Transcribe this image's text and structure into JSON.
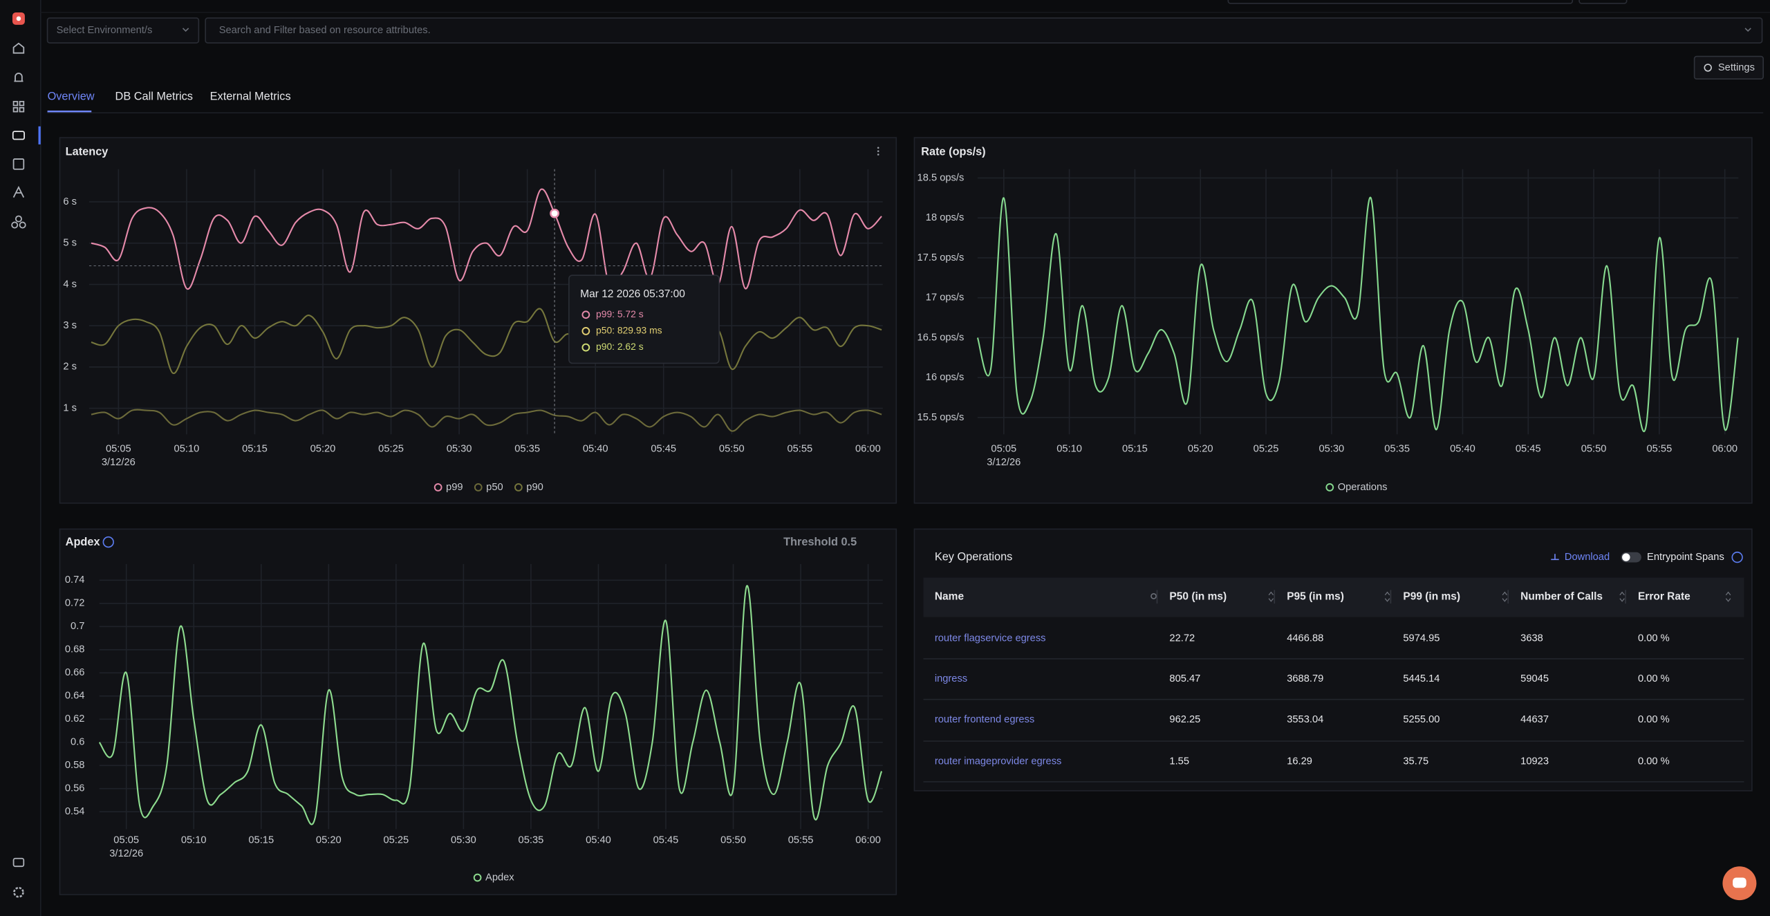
{
  "filters": {
    "environment": "Select Environment/s",
    "search": "Search and Filter based on resource attributes."
  },
  "settings": "Settings",
  "tabs": [
    "Overview",
    "DB Call Metrics",
    "External Metrics"
  ],
  "chart_data": [
    {
      "type": "line",
      "title": "Latency",
      "x": [
        "2026-03-12T05:03",
        "2026-03-12T05:04",
        "2026-03-12T05:05",
        "2026-03-12T05:06",
        "2026-03-12T05:07",
        "2026-03-12T05:08",
        "2026-03-12T05:09",
        "2026-03-12T05:10",
        "2026-03-12T05:11",
        "2026-03-12T05:12",
        "2026-03-12T05:13",
        "2026-03-12T05:14",
        "2026-03-12T05:15",
        "2026-03-12T05:16",
        "2026-03-12T05:17",
        "2026-03-12T05:18",
        "2026-03-12T05:19",
        "2026-03-12T05:20",
        "2026-03-12T05:21",
        "2026-03-12T05:22",
        "2026-03-12T05:23",
        "2026-03-12T05:24",
        "2026-03-12T05:25",
        "2026-03-12T05:26",
        "2026-03-12T05:27",
        "2026-03-12T05:28",
        "2026-03-12T05:29",
        "2026-03-12T05:30",
        "2026-03-12T05:31",
        "2026-03-12T05:32",
        "2026-03-12T05:33",
        "2026-03-12T05:34",
        "2026-03-12T05:35",
        "2026-03-12T05:36",
        "2026-03-12T05:37",
        "2026-03-12T05:38",
        "2026-03-12T05:39",
        "2026-03-12T05:40",
        "2026-03-12T05:41",
        "2026-03-12T05:42",
        "2026-03-12T05:43",
        "2026-03-12T05:44",
        "2026-03-12T05:45",
        "2026-03-12T05:46",
        "2026-03-12T05:47",
        "2026-03-12T05:48",
        "2026-03-12T05:49",
        "2026-03-12T05:50",
        "2026-03-12T05:51",
        "2026-03-12T05:52",
        "2026-03-12T05:53",
        "2026-03-12T05:54",
        "2026-03-12T05:55",
        "2026-03-12T05:56",
        "2026-03-12T05:57",
        "2026-03-12T05:58",
        "2026-03-12T05:59",
        "2026-03-12T06:00",
        "2026-03-12T06:01"
      ],
      "series": [
        {
          "name": "p99",
          "color": "#e58aaa",
          "values": [
            5.0,
            4.9,
            4.6,
            5.6,
            5.85,
            5.75,
            5.2,
            3.9,
            4.6,
            5.6,
            5.55,
            5.0,
            5.65,
            5.3,
            4.95,
            5.5,
            5.75,
            5.8,
            5.45,
            4.3,
            5.75,
            5.45,
            5.45,
            5.5,
            5.35,
            5.6,
            5.4,
            4.1,
            4.8,
            5.0,
            4.7,
            5.4,
            5.3,
            6.3,
            5.72,
            4.9,
            4.6,
            5.7,
            4.0,
            4.3,
            5.0,
            4.15,
            5.6,
            5.2,
            4.8,
            5.0,
            4.0,
            5.4,
            3.9,
            5.05,
            5.15,
            5.35,
            5.8,
            5.55,
            5.7,
            4.7,
            5.7,
            5.35,
            5.65
          ]
        },
        {
          "name": "p50",
          "color": "#6c6a3a",
          "values": [
            0.85,
            0.9,
            0.75,
            0.95,
            0.95,
            0.9,
            0.6,
            0.75,
            0.9,
            0.9,
            0.7,
            0.85,
            0.95,
            0.9,
            0.85,
            0.7,
            0.85,
            0.95,
            0.75,
            0.9,
            0.85,
            0.9,
            0.8,
            0.95,
            0.85,
            0.55,
            0.8,
            0.75,
            0.85,
            0.6,
            0.65,
            0.85,
            0.9,
            0.95,
            0.82993,
            0.8,
            0.7,
            0.9,
            0.6,
            0.85,
            0.75,
            0.55,
            0.8,
            0.9,
            0.8,
            0.55,
            0.85,
            0.45,
            0.7,
            0.85,
            0.8,
            0.9,
            0.95,
            0.85,
            0.9,
            0.65,
            0.9,
            0.95,
            0.85
          ]
        },
        {
          "name": "p90",
          "color": "#75763c",
          "values": [
            2.6,
            2.55,
            3.0,
            3.15,
            3.1,
            2.85,
            1.85,
            2.5,
            2.95,
            3.0,
            2.55,
            3.0,
            2.7,
            2.95,
            3.1,
            3.0,
            3.25,
            2.85,
            2.2,
            2.9,
            3.0,
            2.95,
            3.0,
            3.2,
            2.9,
            2.0,
            2.75,
            2.9,
            2.6,
            2.3,
            2.35,
            3.05,
            3.1,
            3.4,
            2.62,
            2.8,
            2.5,
            2.9,
            2.3,
            3.1,
            2.6,
            2.2,
            2.8,
            3.0,
            2.7,
            2.4,
            2.9,
            1.95,
            2.5,
            2.85,
            2.7,
            2.95,
            3.2,
            2.9,
            2.95,
            2.5,
            2.95,
            3.0,
            2.9
          ]
        }
      ],
      "xlim": [
        "2026-03-12T05:02:51",
        "2026-03-12T06:01:05"
      ],
      "xticks": [
        {
          "value": "2026-03-12T05:05",
          "label": "05:05",
          "date": "3/12/26"
        },
        {
          "value": "2026-03-12T05:10",
          "label": "05:10"
        },
        {
          "value": "2026-03-12T05:15",
          "label": "05:15"
        },
        {
          "value": "2026-03-12T05:20",
          "label": "05:20"
        },
        {
          "value": "2026-03-12T05:25",
          "label": "05:25"
        },
        {
          "value": "2026-03-12T05:30",
          "label": "05:30"
        },
        {
          "value": "2026-03-12T05:35",
          "label": "05:35"
        },
        {
          "value": "2026-03-12T05:40",
          "label": "05:40"
        },
        {
          "value": "2026-03-12T05:45",
          "label": "05:45"
        },
        {
          "value": "2026-03-12T05:50",
          "label": "05:50"
        },
        {
          "value": "2026-03-12T05:55",
          "label": "05:55"
        },
        {
          "value": "2026-03-12T06:00",
          "label": "06:00"
        }
      ],
      "ylim": [
        0.37,
        6.79
      ],
      "yticks": [
        {
          "value": 1,
          "label": "1 s"
        },
        {
          "value": 2,
          "label": "2 s"
        },
        {
          "value": 3,
          "label": "3 s"
        },
        {
          "value": 4,
          "label": "4 s"
        },
        {
          "value": 5,
          "label": "5 s"
        },
        {
          "value": 6,
          "label": "6 s"
        }
      ],
      "grid": true,
      "hover": {
        "x": "2026-03-12T05:37",
        "y": 4.45
      },
      "tooltip": {
        "title": "Mar 12 2026 05:37:00",
        "items": [
          "p99: 5.72 s",
          "p50: 829.93 ms",
          "p90: 2.62 s"
        ],
        "colors": [
          "#e58aaa",
          "#e2cf72",
          "#cfdc74"
        ]
      }
    },
    {
      "type": "line",
      "title": "Rate (ops/s)",
      "x": [
        "2026-03-12T05:03",
        "2026-03-12T05:04",
        "2026-03-12T05:05",
        "2026-03-12T05:06",
        "2026-03-12T05:07",
        "2026-03-12T05:08",
        "2026-03-12T05:09",
        "2026-03-12T05:10",
        "2026-03-12T05:11",
        "2026-03-12T05:12",
        "2026-03-12T05:13",
        "2026-03-12T05:14",
        "2026-03-12T05:15",
        "2026-03-12T05:16",
        "2026-03-12T05:17",
        "2026-03-12T05:18",
        "2026-03-12T05:19",
        "2026-03-12T05:20",
        "2026-03-12T05:21",
        "2026-03-12T05:22",
        "2026-03-12T05:23",
        "2026-03-12T05:24",
        "2026-03-12T05:25",
        "2026-03-12T05:26",
        "2026-03-12T05:27",
        "2026-03-12T05:28",
        "2026-03-12T05:29",
        "2026-03-12T05:30",
        "2026-03-12T05:31",
        "2026-03-12T05:32",
        "2026-03-12T05:33",
        "2026-03-12T05:34",
        "2026-03-12T05:35",
        "2026-03-12T05:36",
        "2026-03-12T05:37",
        "2026-03-12T05:38",
        "2026-03-12T05:39",
        "2026-03-12T05:40",
        "2026-03-12T05:41",
        "2026-03-12T05:42",
        "2026-03-12T05:43",
        "2026-03-12T05:44",
        "2026-03-12T05:45",
        "2026-03-12T05:46",
        "2026-03-12T05:47",
        "2026-03-12T05:48",
        "2026-03-12T05:49",
        "2026-03-12T05:50",
        "2026-03-12T05:51",
        "2026-03-12T05:52",
        "2026-03-12T05:53",
        "2026-03-12T05:54",
        "2026-03-12T05:55",
        "2026-03-12T05:56",
        "2026-03-12T05:57",
        "2026-03-12T05:58",
        "2026-03-12T05:59",
        "2026-03-12T06:00",
        "2026-03-12T06:01"
      ],
      "series": [
        {
          "name": "Operations",
          "color": "#86d98f",
          "values": [
            16.5,
            16.1,
            18.25,
            15.8,
            15.7,
            16.5,
            17.8,
            16.1,
            16.9,
            15.9,
            16.0,
            16.9,
            16.1,
            16.3,
            16.6,
            16.3,
            15.7,
            17.4,
            16.6,
            16.2,
            16.6,
            16.95,
            15.8,
            15.95,
            17.15,
            16.7,
            17.0,
            17.15,
            17.0,
            16.8,
            18.25,
            16.1,
            16.05,
            15.5,
            16.4,
            15.35,
            16.6,
            16.95,
            16.2,
            16.5,
            15.9,
            17.1,
            16.6,
            15.75,
            16.5,
            15.9,
            16.5,
            16.0,
            17.4,
            15.8,
            15.9,
            15.4,
            17.75,
            16.0,
            16.6,
            16.7,
            17.2,
            15.35,
            16.5
          ]
        }
      ],
      "xlim": [
        "2026-03-12T05:03:00",
        "2026-03-12T06:01:02"
      ],
      "xticks": [
        {
          "value": "2026-03-12T05:05",
          "label": "05:05",
          "date": "3/12/26"
        },
        {
          "value": "2026-03-12T05:10",
          "label": "05:10"
        },
        {
          "value": "2026-03-12T05:15",
          "label": "05:15"
        },
        {
          "value": "2026-03-12T05:20",
          "label": "05:20"
        },
        {
          "value": "2026-03-12T05:25",
          "label": "05:25"
        },
        {
          "value": "2026-03-12T05:30",
          "label": "05:30"
        },
        {
          "value": "2026-03-12T05:35",
          "label": "05:35"
        },
        {
          "value": "2026-03-12T05:40",
          "label": "05:40"
        },
        {
          "value": "2026-03-12T05:45",
          "label": "05:45"
        },
        {
          "value": "2026-03-12T05:50",
          "label": "05:50"
        },
        {
          "value": "2026-03-12T05:55",
          "label": "05:55"
        },
        {
          "value": "2026-03-12T06:00",
          "label": "06:00"
        }
      ],
      "ylim": [
        15.29,
        18.61
      ],
      "yticks": [
        {
          "value": 15.5,
          "label": "15.5 ops/s"
        },
        {
          "value": 16,
          "label": "16 ops/s"
        },
        {
          "value": 16.5,
          "label": "16.5 ops/s"
        },
        {
          "value": 17,
          "label": "17 ops/s"
        },
        {
          "value": 17.5,
          "label": "17.5 ops/s"
        },
        {
          "value": 18,
          "label": "18 ops/s"
        },
        {
          "value": 18.5,
          "label": "18.5 ops/s"
        }
      ],
      "grid": true
    },
    {
      "type": "line",
      "title": "Apdex",
      "threshold_label": "Threshold 0.5",
      "x": [
        "2026-03-12T05:03",
        "2026-03-12T05:04",
        "2026-03-12T05:05",
        "2026-03-12T05:06",
        "2026-03-12T05:07",
        "2026-03-12T05:08",
        "2026-03-12T05:09",
        "2026-03-12T05:10",
        "2026-03-12T05:11",
        "2026-03-12T05:12",
        "2026-03-12T05:13",
        "2026-03-12T05:14",
        "2026-03-12T05:15",
        "2026-03-12T05:16",
        "2026-03-12T05:17",
        "2026-03-12T05:18",
        "2026-03-12T05:19",
        "2026-03-12T05:20",
        "2026-03-12T05:21",
        "2026-03-12T05:22",
        "2026-03-12T05:23",
        "2026-03-12T05:24",
        "2026-03-12T05:25",
        "2026-03-12T05:26",
        "2026-03-12T05:27",
        "2026-03-12T05:28",
        "2026-03-12T05:29",
        "2026-03-12T05:30",
        "2026-03-12T05:31",
        "2026-03-12T05:32",
        "2026-03-12T05:33",
        "2026-03-12T05:34",
        "2026-03-12T05:35",
        "2026-03-12T05:36",
        "2026-03-12T05:37",
        "2026-03-12T05:38",
        "2026-03-12T05:39",
        "2026-03-12T05:40",
        "2026-03-12T05:41",
        "2026-03-12T05:42",
        "2026-03-12T05:43",
        "2026-03-12T05:44",
        "2026-03-12T05:45",
        "2026-03-12T05:46",
        "2026-03-12T05:47",
        "2026-03-12T05:48",
        "2026-03-12T05:49",
        "2026-03-12T05:50",
        "2026-03-12T05:51",
        "2026-03-12T05:52",
        "2026-03-12T05:53",
        "2026-03-12T05:54",
        "2026-03-12T05:55",
        "2026-03-12T05:56",
        "2026-03-12T05:57",
        "2026-03-12T05:58",
        "2026-03-12T05:59",
        "2026-03-12T06:00",
        "2026-03-12T06:01"
      ],
      "series": [
        {
          "name": "Apdex",
          "color": "#8edc8f",
          "values": [
            0.6,
            0.59,
            0.66,
            0.545,
            0.545,
            0.58,
            0.7,
            0.62,
            0.55,
            0.555,
            0.565,
            0.575,
            0.615,
            0.565,
            0.555,
            0.545,
            0.535,
            0.645,
            0.57,
            0.555,
            0.555,
            0.555,
            0.55,
            0.56,
            0.685,
            0.61,
            0.625,
            0.61,
            0.645,
            0.645,
            0.67,
            0.6,
            0.55,
            0.545,
            0.59,
            0.58,
            0.63,
            0.575,
            0.64,
            0.625,
            0.56,
            0.6,
            0.705,
            0.56,
            0.6,
            0.645,
            0.6,
            0.56,
            0.735,
            0.6,
            0.555,
            0.6,
            0.65,
            0.535,
            0.58,
            0.6,
            0.63,
            0.55,
            0.575
          ]
        }
      ],
      "xlim": [
        "2026-03-12T05:03:00",
        "2026-03-12T06:01:05"
      ],
      "xticks": [
        {
          "value": "2026-03-12T05:05",
          "label": "05:05",
          "date": "3/12/26"
        },
        {
          "value": "2026-03-12T05:10",
          "label": "05:10"
        },
        {
          "value": "2026-03-12T05:15",
          "label": "05:15"
        },
        {
          "value": "2026-03-12T05:20",
          "label": "05:20"
        },
        {
          "value": "2026-03-12T05:25",
          "label": "05:25"
        },
        {
          "value": "2026-03-12T05:30",
          "label": "05:30"
        },
        {
          "value": "2026-03-12T05:35",
          "label": "05:35"
        },
        {
          "value": "2026-03-12T05:40",
          "label": "05:40"
        },
        {
          "value": "2026-03-12T05:45",
          "label": "05:45"
        },
        {
          "value": "2026-03-12T05:50",
          "label": "05:50"
        },
        {
          "value": "2026-03-12T05:55",
          "label": "05:55"
        },
        {
          "value": "2026-03-12T06:00",
          "label": "06:00"
        }
      ],
      "ylim": [
        0.525,
        0.754
      ],
      "yticks": [
        0.54,
        0.56,
        0.58,
        0.6,
        0.62,
        0.64,
        0.66,
        0.68,
        0.7,
        0.72,
        0.74
      ],
      "grid": true
    }
  ],
  "key_operations": {
    "title": "Key Operations",
    "download": "Download",
    "toggle": "Entrypoint Spans",
    "columns": [
      "Name",
      "P50 (in ms)",
      "P95 (in ms)",
      "P99 (in ms)",
      "Number of Calls",
      "Error Rate"
    ],
    "rows": [
      [
        "router flagservice egress",
        "22.72",
        "4466.88",
        "5974.95",
        "3638",
        "0.00 %"
      ],
      [
        "ingress",
        "805.47",
        "3688.79",
        "5445.14",
        "59045",
        "0.00 %"
      ],
      [
        "router frontend egress",
        "962.25",
        "3553.04",
        "5255.00",
        "44637",
        "0.00 %"
      ],
      [
        "router imageprovider egress",
        "1.55",
        "16.29",
        "35.75",
        "10923",
        "0.00 %"
      ]
    ]
  }
}
